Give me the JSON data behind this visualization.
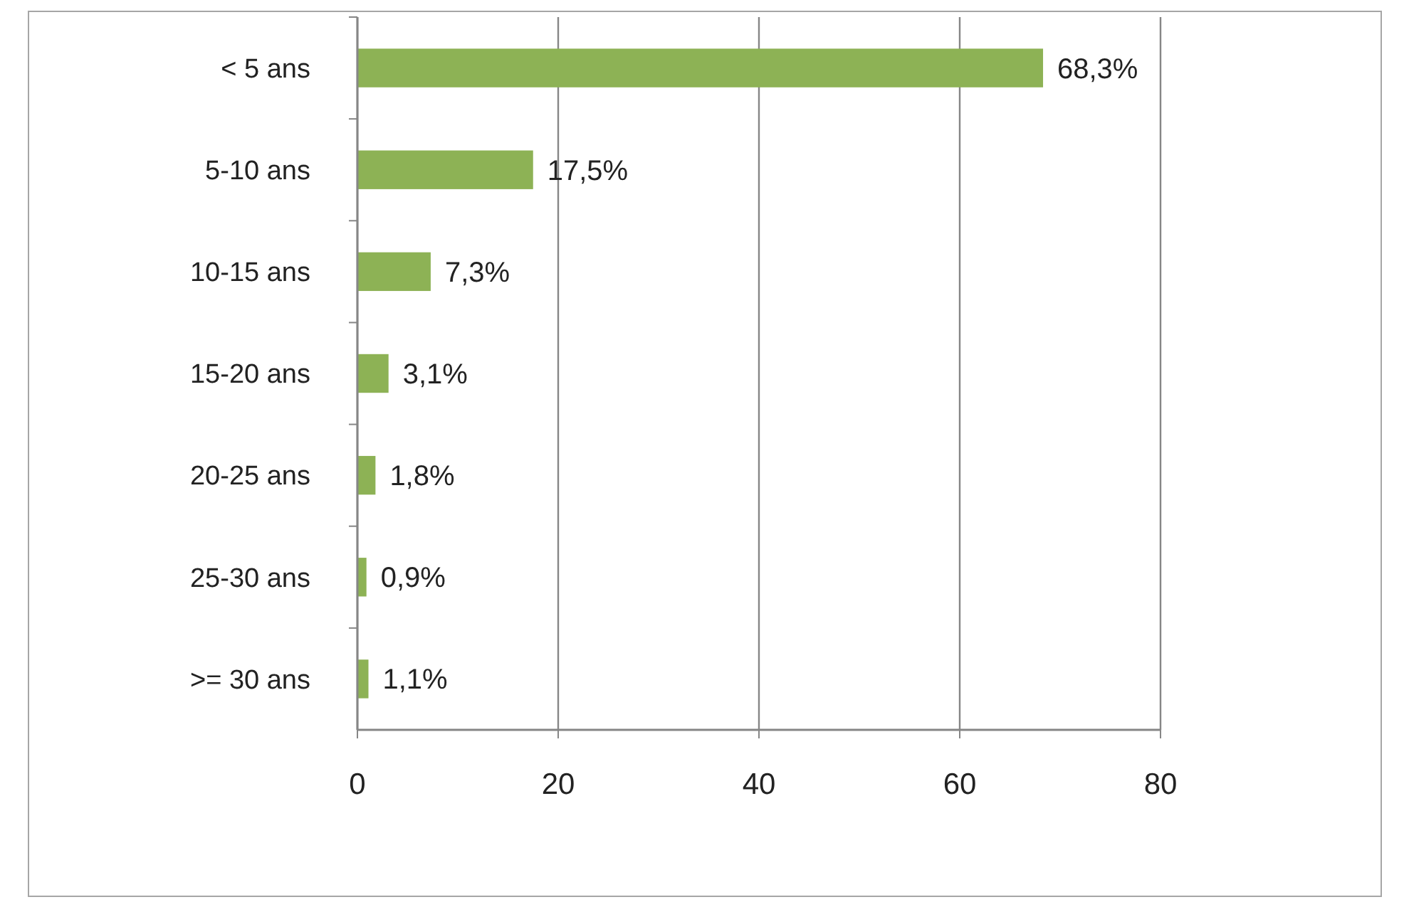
{
  "chart_data": {
    "type": "bar",
    "orientation": "horizontal",
    "categories": [
      "< 5 ans",
      "5-10 ans",
      "10-15 ans",
      "15-20 ans",
      "20-25 ans",
      "25-30 ans",
      ">= 30 ans"
    ],
    "values": [
      68.3,
      17.5,
      7.3,
      3.1,
      1.8,
      0.9,
      1.1
    ],
    "value_labels": [
      "68,3%",
      "17,5%",
      "7,3%",
      "3,1%",
      "1,8%",
      "0,9%",
      "1,1%"
    ],
    "color": "#8db255",
    "xlim": [
      0,
      80
    ],
    "xticks": [
      0,
      20,
      40,
      60,
      80
    ],
    "grid": "x"
  }
}
